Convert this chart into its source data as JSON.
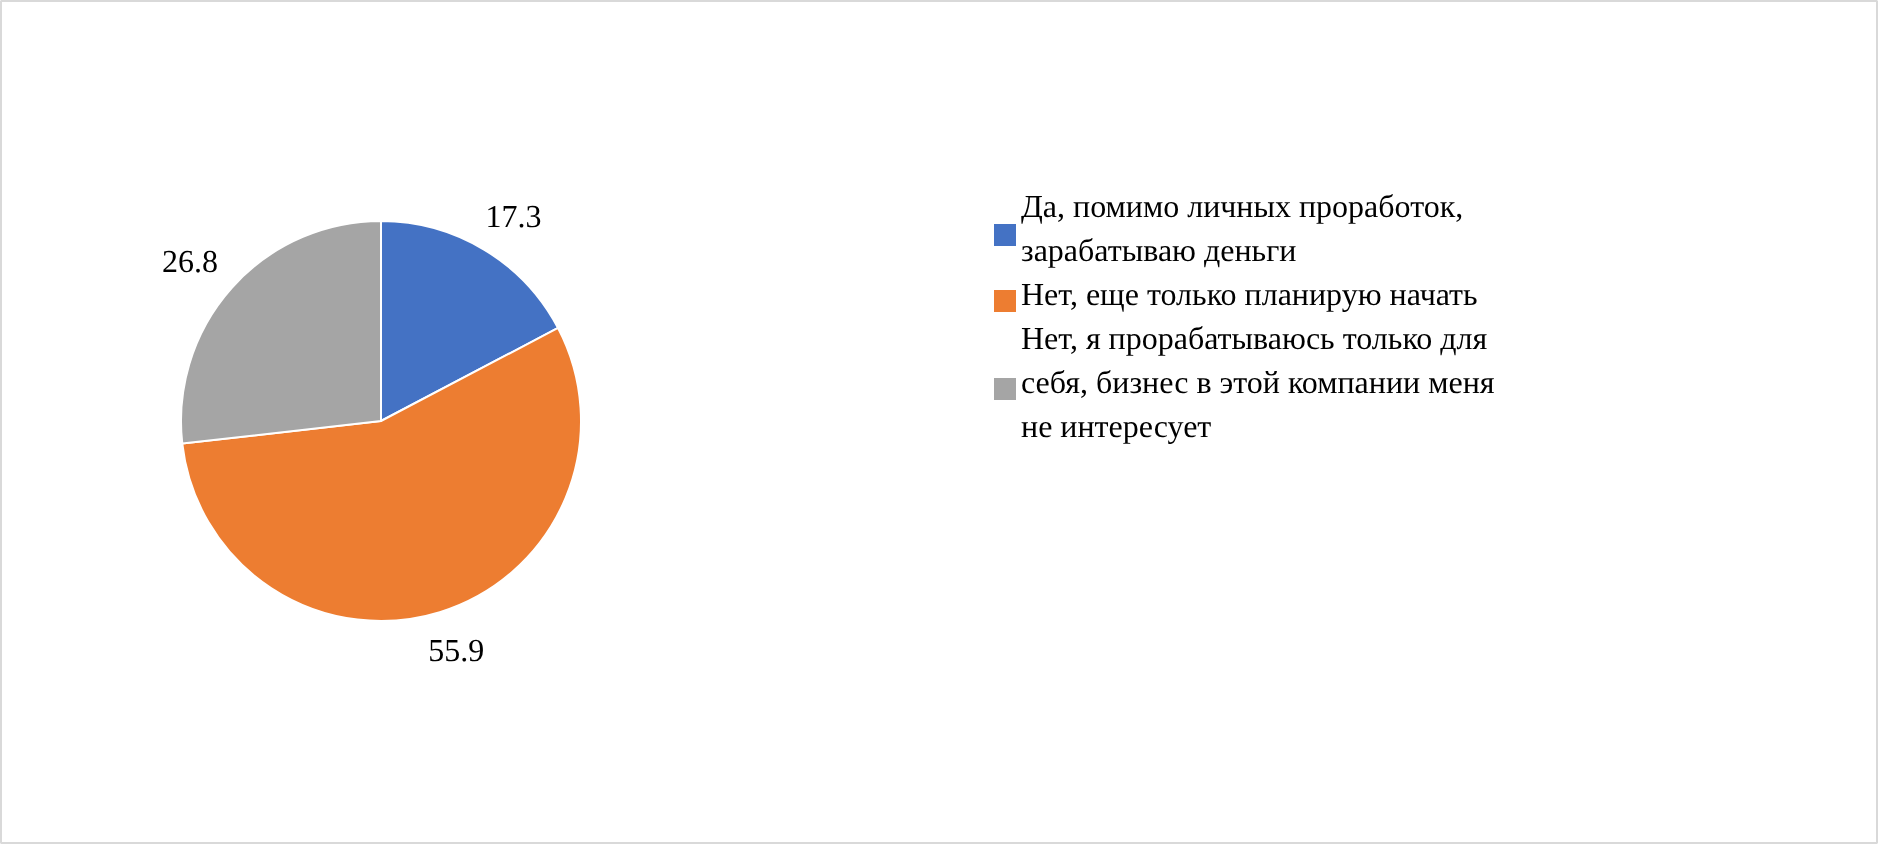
{
  "chart_data": {
    "type": "pie",
    "categories": [
      "Да, помимо личных проработок, зарабатываю деньги",
      "Нет, еще только планирую начать",
      "Нет, я прорабатываюсь только для себя, бизнес в этой компании меня не интересует"
    ],
    "values": [
      17.3,
      55.9,
      26.8
    ],
    "colors": [
      "#4472c4",
      "#ed7d31",
      "#a5a5a5"
    ],
    "data_labels": true,
    "legend": "right"
  }
}
